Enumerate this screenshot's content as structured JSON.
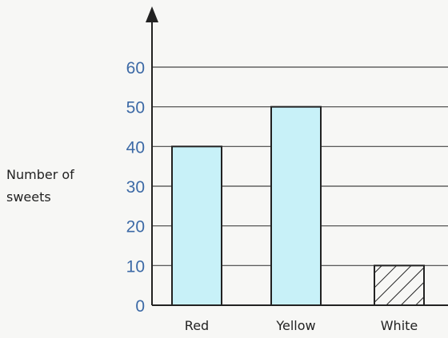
{
  "chart_data": {
    "type": "bar",
    "categories": [
      "Red",
      "Yellow",
      "White"
    ],
    "values": [
      40,
      50,
      10
    ],
    "bar_styles": [
      "solid",
      "solid",
      "hatched"
    ],
    "ylabel_lines": [
      "Number of",
      "sweets"
    ],
    "y_ticks": [
      0,
      10,
      20,
      30,
      40,
      50,
      60
    ],
    "ylim": [
      0,
      60
    ],
    "grid": true,
    "colors": {
      "bar_fill": "#c8f1f8",
      "bar_stroke": "#222222",
      "tick_text": "#3d6aa6",
      "grid": "#444444",
      "axis": "#222222"
    }
  }
}
